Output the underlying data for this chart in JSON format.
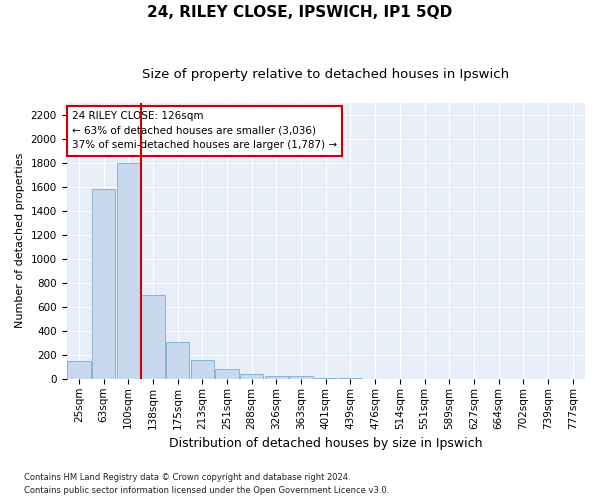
{
  "title1": "24, RILEY CLOSE, IPSWICH, IP1 5QD",
  "title2": "Size of property relative to detached houses in Ipswich",
  "xlabel": "Distribution of detached houses by size in Ipswich",
  "ylabel": "Number of detached properties",
  "categories": [
    "25sqm",
    "63sqm",
    "100sqm",
    "138sqm",
    "175sqm",
    "213sqm",
    "251sqm",
    "288sqm",
    "326sqm",
    "363sqm",
    "401sqm",
    "439sqm",
    "476sqm",
    "514sqm",
    "551sqm",
    "589sqm",
    "627sqm",
    "664sqm",
    "702sqm",
    "739sqm",
    "777sqm"
  ],
  "values": [
    150,
    1580,
    1800,
    700,
    310,
    160,
    80,
    40,
    25,
    20,
    10,
    5,
    3,
    2,
    1,
    1,
    1,
    0,
    0,
    0,
    0
  ],
  "bar_color": "#c8d9ef",
  "bar_edge_color": "#7aabcf",
  "vline_index": 2.5,
  "vline_color": "#cc0000",
  "annotation_text": "24 RILEY CLOSE: 126sqm\n← 63% of detached houses are smaller (3,036)\n37% of semi-detached houses are larger (1,787) →",
  "annotation_box_color": "#ffffff",
  "annotation_box_edge_color": "#cc0000",
  "ylim": [
    0,
    2300
  ],
  "yticks": [
    0,
    200,
    400,
    600,
    800,
    1000,
    1200,
    1400,
    1600,
    1800,
    2000,
    2200
  ],
  "footnote1": "Contains HM Land Registry data © Crown copyright and database right 2024.",
  "footnote2": "Contains public sector information licensed under the Open Government Licence v3.0.",
  "plot_bg_color": "#e8eef8",
  "fig_bg_color": "#ffffff",
  "title1_fontsize": 11,
  "title2_fontsize": 9.5,
  "xlabel_fontsize": 9,
  "ylabel_fontsize": 8,
  "tick_fontsize": 7.5,
  "annot_fontsize": 7.5
}
